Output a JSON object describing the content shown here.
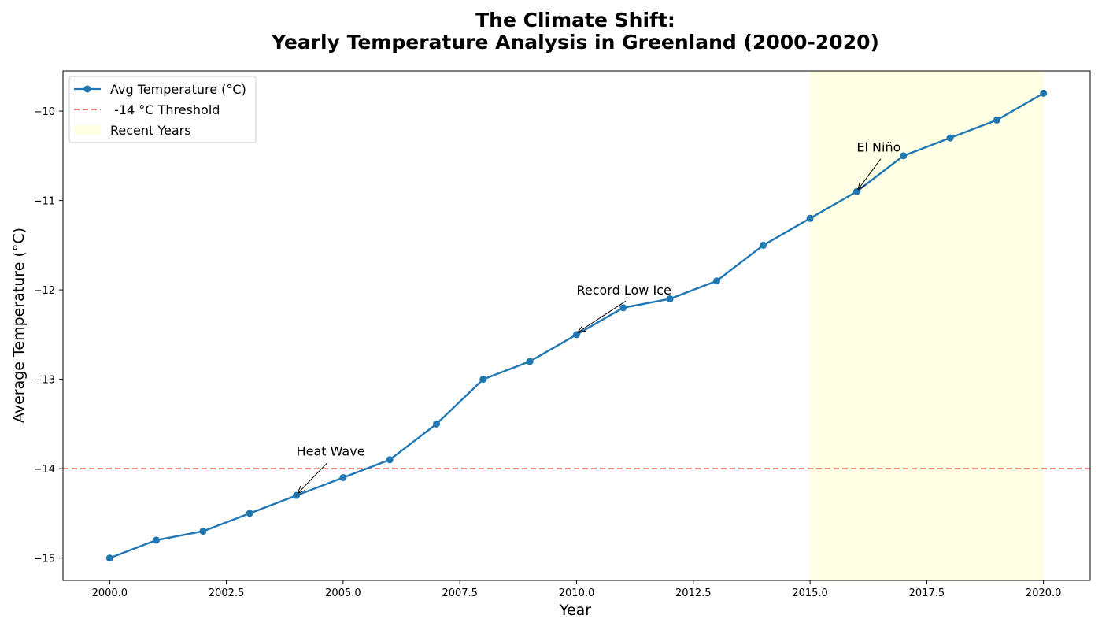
{
  "chart_data": {
    "type": "line",
    "title_line1": "The Climate Shift:",
    "title_line2": "Yearly Temperature Analysis in Greenland (2000-2020)",
    "xlabel": "Year",
    "ylabel": "Average Temperature (°C)",
    "xlim": [
      1999.0,
      2021.0
    ],
    "ylim": [
      -15.25,
      -9.55
    ],
    "x_ticks": [
      2000.0,
      2002.5,
      2005.0,
      2007.5,
      2010.0,
      2012.5,
      2015.0,
      2017.5,
      2020.0
    ],
    "x_tick_labels": [
      "2000.0",
      "2002.5",
      "2005.0",
      "2007.5",
      "2010.0",
      "2012.5",
      "2015.0",
      "2017.5",
      "2020.0"
    ],
    "y_ticks": [
      -15,
      -14,
      -13,
      -12,
      -11,
      -10
    ],
    "y_tick_labels": [
      "−15",
      "−14",
      "−13",
      "−12",
      "−11",
      "−10"
    ],
    "grid": false,
    "series": [
      {
        "name": "Avg Temperature (°C)",
        "color": "#1f77b4",
        "x": [
          2000,
          2001,
          2002,
          2003,
          2004,
          2005,
          2006,
          2007,
          2008,
          2009,
          2010,
          2011,
          2012,
          2013,
          2014,
          2015,
          2016,
          2017,
          2018,
          2019,
          2020
        ],
        "values": [
          -15.0,
          -14.8,
          -14.7,
          -14.5,
          -14.3,
          -14.1,
          -13.9,
          -13.5,
          -13.0,
          -12.8,
          -12.5,
          -12.2,
          -12.1,
          -11.9,
          -11.5,
          -11.2,
          -10.9,
          -10.5,
          -10.3,
          -10.1,
          -9.8
        ]
      }
    ],
    "threshold": {
      "name": " -14 °C Threshold",
      "value": -14,
      "color": "#e34a4a"
    },
    "shaded_region": {
      "name": "Recent Years",
      "x_start": 2015,
      "x_end": 2020,
      "color": "#ffffe3"
    },
    "legend_position": "upper-left",
    "annotations": [
      {
        "text": "Heat Wave",
        "x": 2004,
        "y": -14.3,
        "text_x": 2004,
        "text_y": -13.8
      },
      {
        "text": "Record Low Ice",
        "x": 2010,
        "y": -12.5,
        "text_x": 2010,
        "text_y": -12.0
      },
      {
        "text": "El Niño",
        "x": 2016,
        "y": -10.9,
        "text_x": 2016,
        "text_y": -10.4
      }
    ]
  }
}
